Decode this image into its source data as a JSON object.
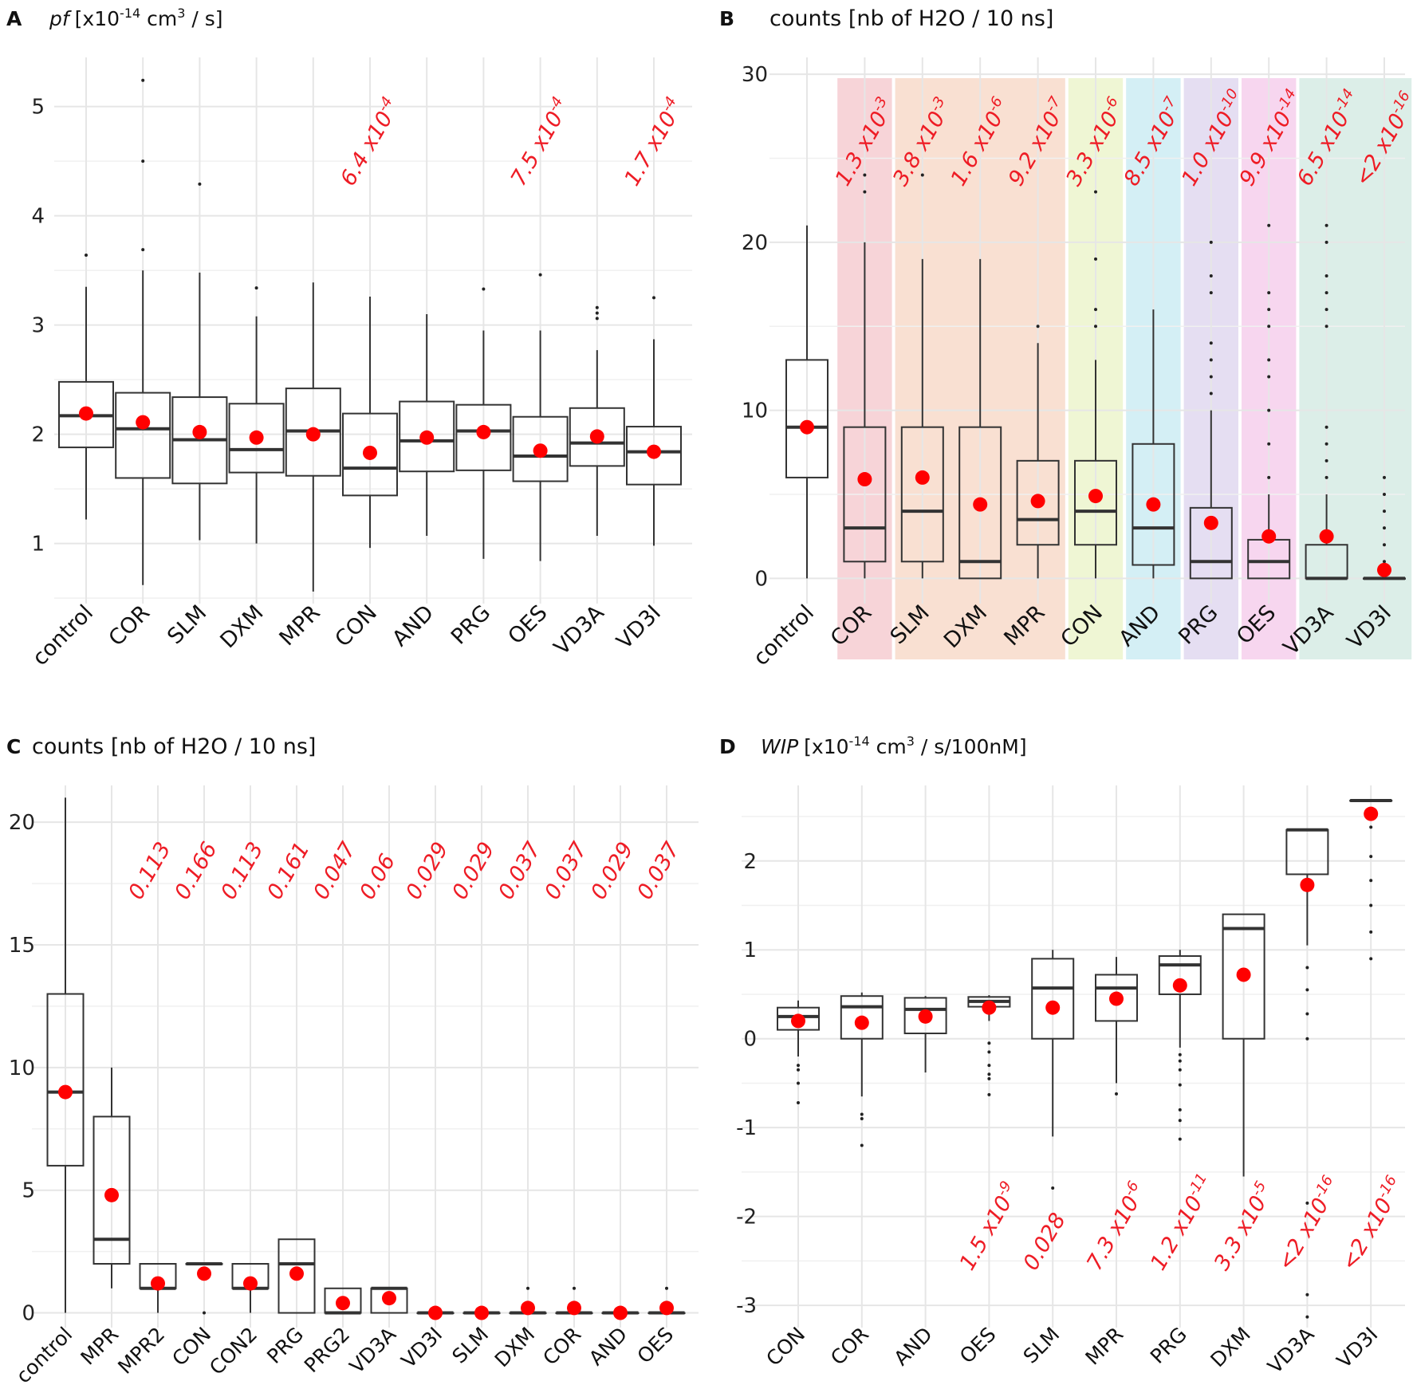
{
  "chart_data": [
    {
      "type": "box",
      "panel": "A",
      "title_italic": "pf",
      "title": "[x10",
      "title_sup": "-14",
      "title_mid": " cm",
      "title_sup2": "3",
      "title_end": " / s]",
      "ylim": [
        0.45,
        5.45
      ],
      "yticks": [
        1,
        2,
        3,
        4,
        5
      ],
      "categories": [
        "control",
        "COR",
        "SLM",
        "DXM",
        "MPR",
        "CON",
        "AND",
        "PRG",
        "OES",
        "VD3A",
        "VD3I"
      ],
      "boxes": [
        {
          "q1": 1.88,
          "median": 2.17,
          "q3": 2.48,
          "lo": 1.22,
          "hi": 3.35,
          "mean": 2.19,
          "outliers": [
            3.64
          ]
        },
        {
          "q1": 1.6,
          "median": 2.05,
          "q3": 2.38,
          "lo": 0.62,
          "hi": 3.5,
          "mean": 2.11,
          "outliers": [
            3.69,
            4.5,
            5.24
          ]
        },
        {
          "q1": 1.55,
          "median": 1.95,
          "q3": 2.34,
          "lo": 1.03,
          "hi": 3.48,
          "mean": 2.02,
          "outliers": [
            4.29
          ]
        },
        {
          "q1": 1.65,
          "median": 1.86,
          "q3": 2.28,
          "lo": 1.0,
          "hi": 3.08,
          "mean": 1.97,
          "outliers": [
            3.34
          ]
        },
        {
          "q1": 1.62,
          "median": 2.03,
          "q3": 2.42,
          "lo": 0.56,
          "hi": 3.39,
          "mean": 2.0,
          "outliers": []
        },
        {
          "q1": 1.44,
          "median": 1.69,
          "q3": 2.19,
          "lo": 0.96,
          "hi": 3.26,
          "mean": 1.83,
          "outliers": []
        },
        {
          "q1": 1.66,
          "median": 1.94,
          "q3": 2.3,
          "lo": 1.07,
          "hi": 3.1,
          "mean": 1.97,
          "outliers": []
        },
        {
          "q1": 1.67,
          "median": 2.03,
          "q3": 2.27,
          "lo": 0.86,
          "hi": 2.95,
          "mean": 2.02,
          "outliers": [
            3.33
          ]
        },
        {
          "q1": 1.57,
          "median": 1.8,
          "q3": 2.16,
          "lo": 0.84,
          "hi": 2.95,
          "mean": 1.85,
          "outliers": [
            3.46
          ]
        },
        {
          "q1": 1.71,
          "median": 1.92,
          "q3": 2.24,
          "lo": 1.07,
          "hi": 2.77,
          "mean": 1.98,
          "outliers": [
            3.06,
            3.11,
            3.16
          ]
        },
        {
          "q1": 1.54,
          "median": 1.84,
          "q3": 2.07,
          "lo": 0.98,
          "hi": 2.87,
          "mean": 1.84,
          "outliers": [
            3.25
          ]
        }
      ],
      "annotations": [
        {
          "index": 5,
          "text": "6.4 x10",
          "sup": "-4"
        },
        {
          "index": 8,
          "text": "7.5 x10",
          "sup": "-4"
        },
        {
          "index": 10,
          "text": "1.7 x10",
          "sup": "-4"
        }
      ]
    },
    {
      "type": "box",
      "panel": "B",
      "title": "counts [nb of H2O / 10 ns]",
      "ylim": [
        -1.5,
        31
      ],
      "yticks": [
        0,
        10,
        20,
        30
      ],
      "categories": [
        "control",
        "COR",
        "SLM",
        "DXM",
        "MPR",
        "CON",
        "AND",
        "PRG",
        "OES",
        "VD3A",
        "VD3I"
      ],
      "shading": [
        {
          "from": 1,
          "to": 1,
          "color": "#f4c6cb"
        },
        {
          "from": 2,
          "to": 4,
          "color": "#f7d5c3"
        },
        {
          "from": 5,
          "to": 5,
          "color": "#eaf3c6"
        },
        {
          "from": 6,
          "to": 6,
          "color": "#c6e9f2"
        },
        {
          "from": 7,
          "to": 7,
          "color": "#dcd3ee"
        },
        {
          "from": 8,
          "to": 8,
          "color": "#f4c8ea"
        },
        {
          "from": 9,
          "to": 10,
          "color": "#d0e8e0"
        }
      ],
      "boxes": [
        {
          "q1": 6,
          "median": 9,
          "q3": 13,
          "lo": 0,
          "hi": 21,
          "mean": 9,
          "outliers": []
        },
        {
          "q1": 1,
          "median": 3,
          "q3": 9,
          "lo": 0,
          "hi": 20,
          "mean": 5.9,
          "outliers": [
            23,
            24
          ]
        },
        {
          "q1": 1,
          "median": 4,
          "q3": 9,
          "lo": 0,
          "hi": 19,
          "mean": 6,
          "outliers": [
            24
          ]
        },
        {
          "q1": 0,
          "median": 1,
          "q3": 9,
          "lo": 0,
          "hi": 19,
          "mean": 4.4,
          "outliers": []
        },
        {
          "q1": 2,
          "median": 3.5,
          "q3": 7,
          "lo": 0,
          "hi": 14,
          "mean": 4.6,
          "outliers": [
            15
          ]
        },
        {
          "q1": 2,
          "median": 4,
          "q3": 7,
          "lo": 0,
          "hi": 13,
          "mean": 4.9,
          "outliers": [
            15,
            16,
            19,
            23
          ]
        },
        {
          "q1": 0.8,
          "median": 3,
          "q3": 8,
          "lo": 0,
          "hi": 16,
          "mean": 4.4,
          "outliers": []
        },
        {
          "q1": 0,
          "median": 1,
          "q3": 4.2,
          "lo": 0,
          "hi": 10,
          "mean": 3.3,
          "outliers": [
            11,
            12,
            13,
            14,
            17,
            18,
            20
          ]
        },
        {
          "q1": 0,
          "median": 1,
          "q3": 2.3,
          "lo": 0,
          "hi": 5,
          "mean": 2.5,
          "outliers": [
            6,
            8,
            10,
            12,
            13,
            15,
            16,
            17,
            21
          ]
        },
        {
          "q1": 0,
          "median": 0,
          "q3": 2,
          "lo": 0,
          "hi": 5,
          "mean": 2.5,
          "outliers": [
            6,
            7,
            8,
            9,
            15,
            16,
            17,
            18,
            20,
            21
          ]
        },
        {
          "q1": 0,
          "median": 0,
          "q3": 0,
          "lo": 0,
          "hi": 0,
          "mean": 0.5,
          "outliers": [
            1,
            2,
            3,
            4,
            5,
            6
          ]
        }
      ],
      "annotations": [
        {
          "index": 1,
          "text": "1.3 x10",
          "sup": "-3"
        },
        {
          "index": 2,
          "text": "3.8 x10",
          "sup": "-3"
        },
        {
          "index": 3,
          "text": "1.6 x10",
          "sup": "-6"
        },
        {
          "index": 4,
          "text": "9.2 x10",
          "sup": "-7"
        },
        {
          "index": 5,
          "text": "3.3 x10",
          "sup": "-6"
        },
        {
          "index": 6,
          "text": "8.5 x10",
          "sup": "-7"
        },
        {
          "index": 7,
          "text": "1.0 x10",
          "sup": "-10"
        },
        {
          "index": 8,
          "text": "9.9 x10",
          "sup": "-14"
        },
        {
          "index": 9,
          "text": "6.5 x10",
          "sup": "-14"
        },
        {
          "index": 10,
          "text": "<2 x10",
          "sup": "-16"
        }
      ]
    },
    {
      "type": "box",
      "panel": "C",
      "title": "counts [nb of H2O / 10 ns]",
      "ylim": [
        -0.6,
        21.5
      ],
      "yticks": [
        0,
        5,
        10,
        15,
        20
      ],
      "categories": [
        "control",
        "MPR",
        "MPR2",
        "CON",
        "CON2",
        "PRG",
        "PRG2",
        "VD3A",
        "VD3I",
        "SLM",
        "DXM",
        "COR",
        "AND",
        "OES"
      ],
      "boxes": [
        {
          "q1": 6,
          "median": 9,
          "q3": 13,
          "lo": 0,
          "hi": 21,
          "mean": 9,
          "outliers": []
        },
        {
          "q1": 2,
          "median": 3,
          "q3": 8,
          "lo": 1,
          "hi": 10,
          "mean": 4.8,
          "outliers": []
        },
        {
          "q1": 1,
          "median": 1,
          "q3": 2,
          "lo": 0,
          "hi": 2,
          "mean": 1.2,
          "outliers": []
        },
        {
          "q1": 2,
          "median": 2,
          "q3": 2,
          "lo": 2,
          "hi": 2,
          "mean": 1.6,
          "outliers": [
            0
          ]
        },
        {
          "q1": 1,
          "median": 1,
          "q3": 2,
          "lo": 0,
          "hi": 2,
          "mean": 1.2,
          "outliers": []
        },
        {
          "q1": 0,
          "median": 2,
          "q3": 3,
          "lo": 0,
          "hi": 3,
          "mean": 1.6,
          "outliers": []
        },
        {
          "q1": 0,
          "median": 0,
          "q3": 1,
          "lo": 0,
          "hi": 1,
          "mean": 0.4,
          "outliers": []
        },
        {
          "q1": 0,
          "median": 1,
          "q3": 1,
          "lo": 0,
          "hi": 1,
          "mean": 0.6,
          "outliers": []
        },
        {
          "q1": 0,
          "median": 0,
          "q3": 0,
          "lo": 0,
          "hi": 0,
          "mean": 0.0,
          "outliers": []
        },
        {
          "q1": 0,
          "median": 0,
          "q3": 0,
          "lo": 0,
          "hi": 0,
          "mean": 0.0,
          "outliers": []
        },
        {
          "q1": 0,
          "median": 0,
          "q3": 0,
          "lo": 0,
          "hi": 0,
          "mean": 0.2,
          "outliers": [
            1
          ]
        },
        {
          "q1": 0,
          "median": 0,
          "q3": 0,
          "lo": 0,
          "hi": 0,
          "mean": 0.2,
          "outliers": [
            1
          ]
        },
        {
          "q1": 0,
          "median": 0,
          "q3": 0,
          "lo": 0,
          "hi": 0,
          "mean": 0.0,
          "outliers": []
        },
        {
          "q1": 0,
          "median": 0,
          "q3": 0,
          "lo": 0,
          "hi": 0,
          "mean": 0.2,
          "outliers": [
            1
          ]
        }
      ],
      "annotations": [
        {
          "index": 2,
          "text": "0.113",
          "sup": ""
        },
        {
          "index": 3,
          "text": "0.166",
          "sup": ""
        },
        {
          "index": 4,
          "text": "0.113",
          "sup": ""
        },
        {
          "index": 5,
          "text": "0.161",
          "sup": ""
        },
        {
          "index": 6,
          "text": "0.047",
          "sup": ""
        },
        {
          "index": 7,
          "text": "0.06",
          "sup": ""
        },
        {
          "index": 8,
          "text": "0.029",
          "sup": ""
        },
        {
          "index": 9,
          "text": "0.029",
          "sup": ""
        },
        {
          "index": 10,
          "text": "0.037",
          "sup": ""
        },
        {
          "index": 11,
          "text": "0.037",
          "sup": ""
        },
        {
          "index": 12,
          "text": "0.029",
          "sup": ""
        },
        {
          "index": 13,
          "text": "0.037",
          "sup": ""
        }
      ]
    },
    {
      "type": "box",
      "panel": "D",
      "title_italic": "WIP",
      "title": "[x10",
      "title_sup": "-14",
      "title_mid": " cm",
      "title_sup2": "3",
      "title_end": " / s/100nM]",
      "ylim": [
        -3.25,
        2.85
      ],
      "yticks": [
        -3,
        -2,
        -1,
        0,
        1,
        2
      ],
      "categories": [
        "CON",
        "COR",
        "AND",
        "OES",
        "SLM",
        "MPR",
        "PRG",
        "DXM",
        "VD3A",
        "VD3I"
      ],
      "boxes": [
        {
          "q1": 0.1,
          "median": 0.25,
          "q3": 0.35,
          "lo": -0.2,
          "hi": 0.43,
          "mean": 0.2,
          "outliers": [
            -0.3,
            -0.35,
            -0.5,
            -0.72
          ]
        },
        {
          "q1": 0.0,
          "median": 0.36,
          "q3": 0.48,
          "lo": -0.65,
          "hi": 0.52,
          "mean": 0.18,
          "outliers": [
            -0.85,
            -0.9,
            -1.2
          ]
        },
        {
          "q1": 0.06,
          "median": 0.33,
          "q3": 0.46,
          "lo": -0.38,
          "hi": 0.48,
          "mean": 0.25,
          "outliers": []
        },
        {
          "q1": 0.36,
          "median": 0.42,
          "q3": 0.47,
          "lo": 0.2,
          "hi": 0.49,
          "mean": 0.35,
          "outliers": [
            -0.05,
            -0.15,
            -0.3,
            -0.4,
            -0.45,
            -0.63
          ]
        },
        {
          "q1": 0.0,
          "median": 0.57,
          "q3": 0.9,
          "lo": -1.1,
          "hi": 1.0,
          "mean": 0.35,
          "outliers": [
            -1.68
          ]
        },
        {
          "q1": 0.2,
          "median": 0.57,
          "q3": 0.72,
          "lo": -0.5,
          "hi": 0.92,
          "mean": 0.45,
          "outliers": [
            -0.62
          ]
        },
        {
          "q1": 0.5,
          "median": 0.83,
          "q3": 0.93,
          "lo": -0.1,
          "hi": 1.0,
          "mean": 0.6,
          "outliers": [
            -0.18,
            -0.25,
            -0.35,
            -0.52,
            -0.8,
            -0.92,
            -1.13
          ]
        },
        {
          "q1": 0.0,
          "median": 1.24,
          "q3": 1.4,
          "lo": -1.55,
          "hi": 1.4,
          "mean": 0.72,
          "outliers": []
        },
        {
          "q1": 1.85,
          "median": 2.35,
          "q3": 2.35,
          "lo": 1.05,
          "hi": 2.35,
          "mean": 1.73,
          "outliers": [
            0.8,
            0.55,
            0.28,
            0.0,
            -1.85,
            -2.88,
            -3.13
          ]
        },
        {
          "q1": 2.68,
          "median": 2.68,
          "q3": 2.68,
          "lo": 2.68,
          "hi": 2.68,
          "mean": 2.53,
          "outliers": [
            2.38,
            2.05,
            1.78,
            1.5,
            1.2,
            0.9
          ]
        }
      ],
      "annotations": [
        {
          "index": 3,
          "text": "1.5 x10",
          "sup": "-9"
        },
        {
          "index": 4,
          "text": "0.028",
          "sup": ""
        },
        {
          "index": 5,
          "text": "7.3 x10",
          "sup": "-6"
        },
        {
          "index": 6,
          "text": "1.2 x10",
          "sup": "-11"
        },
        {
          "index": 7,
          "text": "3.3 x10",
          "sup": "-5"
        },
        {
          "index": 8,
          "text": "<2 x10",
          "sup": "-16"
        },
        {
          "index": 9,
          "text": "<2 x10",
          "sup": "-16"
        }
      ]
    }
  ],
  "colors": {
    "mean": "#ff0000",
    "annotation": "#ee1c25",
    "grid": "#e6e6e6",
    "box": "#333333"
  }
}
